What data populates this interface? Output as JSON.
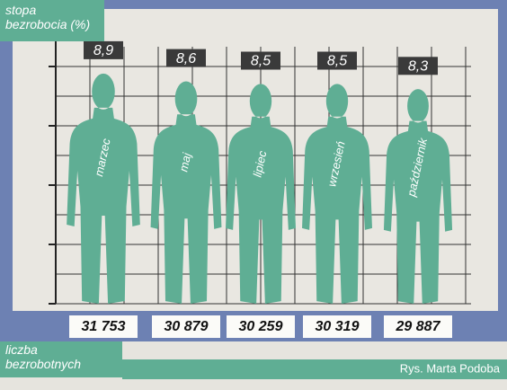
{
  "chart_data": {
    "type": "pictogram",
    "title": "stopa bezrobocia (%)",
    "counts_title": "liczba bezrobotnych",
    "credit": "Rys. Marta Podoba",
    "categories": [
      "marzec",
      "maj",
      "lipiec",
      "wrzesień",
      "październik"
    ],
    "values": [
      8.9,
      8.6,
      8.5,
      8.5,
      8.3
    ],
    "value_labels": [
      "8,9",
      "8,6",
      "8,5",
      "8,5",
      "8,3"
    ],
    "counts": [
      31753,
      30879,
      30259,
      30319,
      29887
    ],
    "count_labels": [
      "31 753",
      "30 879",
      "30 259",
      "30 319",
      "29 887"
    ],
    "color": "#5fae94",
    "grid": true
  }
}
